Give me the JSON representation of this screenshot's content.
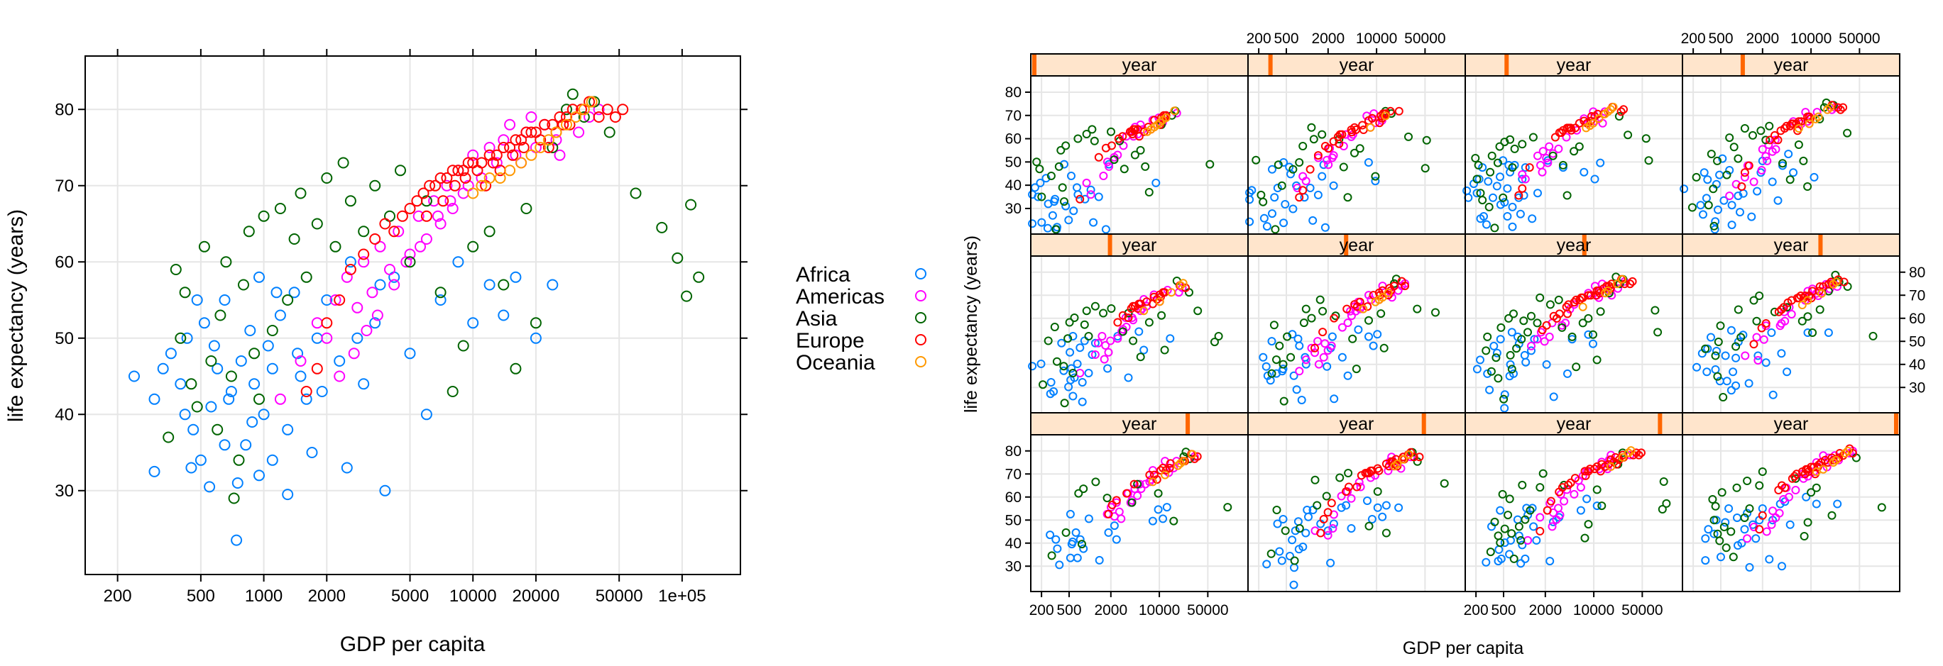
{
  "colors": {
    "Africa": "#0080ff",
    "Americas": "#ff00ff",
    "Asia": "#006400",
    "Europe": "#ff0000",
    "Oceania": "#ff9900",
    "strip_bg": "#ffe5cc",
    "strip_marker": "#ff6600"
  },
  "legend": {
    "entries": [
      "Africa",
      "Americas",
      "Asia",
      "Europe",
      "Oceania"
    ]
  },
  "chart_data": [
    {
      "type": "scatter",
      "title": "",
      "xlabel": "GDP per capita",
      "ylabel": "life expectancy (years)",
      "x_scale": "log",
      "xlim": [
        140,
        190000
      ],
      "ylim": [
        19,
        87
      ],
      "x_ticks": [
        200,
        500,
        1000,
        2000,
        5000,
        10000,
        20000,
        50000,
        100000
      ],
      "x_tick_labels": [
        "200",
        "500",
        "1000",
        "2000",
        "5000",
        "10000",
        "20000",
        "50000",
        "1e+05"
      ],
      "y_ticks": [
        30,
        40,
        50,
        60,
        70,
        80
      ],
      "y_tick_labels": [
        "30",
        "40",
        "50",
        "60",
        "70",
        "80"
      ],
      "grid": true,
      "series": [
        {
          "name": "Africa",
          "points": [
            [
              240,
              45
            ],
            [
              300,
              42
            ],
            [
              330,
              46
            ],
            [
              360,
              48
            ],
            [
              400,
              44
            ],
            [
              430,
              50
            ],
            [
              460,
              38
            ],
            [
              500,
              34
            ],
            [
              520,
              52
            ],
            [
              560,
              41
            ],
            [
              600,
              46
            ],
            [
              650,
              55
            ],
            [
              700,
              43
            ],
            [
              740,
              23.5
            ],
            [
              780,
              47
            ],
            [
              820,
              36
            ],
            [
              860,
              51
            ],
            [
              900,
              44
            ],
            [
              950,
              58
            ],
            [
              1000,
              40
            ],
            [
              1050,
              49
            ],
            [
              1100,
              46
            ],
            [
              1200,
              53
            ],
            [
              1300,
              38
            ],
            [
              1400,
              56
            ],
            [
              1500,
              45
            ],
            [
              1600,
              42
            ],
            [
              1800,
              50
            ],
            [
              2000,
              55
            ],
            [
              2300,
              47
            ],
            [
              2600,
              60
            ],
            [
              3000,
              44
            ],
            [
              3400,
              52
            ],
            [
              3800,
              30
            ],
            [
              4200,
              58
            ],
            [
              5000,
              48
            ],
            [
              6000,
              40
            ],
            [
              7000,
              55
            ],
            [
              8500,
              60
            ],
            [
              10000,
              52
            ],
            [
              12000,
              57
            ],
            [
              14000,
              53
            ],
            [
              16000,
              58
            ],
            [
              20000,
              50
            ],
            [
              24000,
              57
            ],
            [
              300,
              32.5
            ],
            [
              450,
              33
            ],
            [
              550,
              30.5
            ],
            [
              650,
              36
            ],
            [
              750,
              31
            ],
            [
              950,
              32
            ],
            [
              1100,
              34
            ],
            [
              1300,
              29.5
            ],
            [
              1700,
              35
            ],
            [
              2500,
              33
            ],
            [
              420,
              40
            ],
            [
              480,
              55
            ],
            [
              580,
              49
            ],
            [
              680,
              42
            ],
            [
              880,
              39
            ],
            [
              1150,
              56
            ],
            [
              1450,
              48
            ],
            [
              1900,
              43
            ],
            [
              2800,
              50
            ],
            [
              3600,
              57
            ]
          ]
        },
        {
          "name": "Americas",
          "points": [
            [
              1200,
              42
            ],
            [
              1500,
              47
            ],
            [
              1800,
              52
            ],
            [
              2000,
              50
            ],
            [
              2200,
              55
            ],
            [
              2500,
              58
            ],
            [
              2800,
              54
            ],
            [
              3000,
              60
            ],
            [
              3300,
              56
            ],
            [
              3600,
              62
            ],
            [
              4000,
              59
            ],
            [
              4400,
              64
            ],
            [
              5000,
              61
            ],
            [
              5500,
              66
            ],
            [
              6000,
              63
            ],
            [
              6500,
              68
            ],
            [
              7000,
              65
            ],
            [
              7500,
              70
            ],
            [
              8000,
              67
            ],
            [
              8500,
              72
            ],
            [
              9000,
              69
            ],
            [
              10000,
              74
            ],
            [
              11000,
              71
            ],
            [
              12000,
              75
            ],
            [
              13000,
              73
            ],
            [
              14000,
              76
            ],
            [
              16000,
              74
            ],
            [
              18000,
              77
            ],
            [
              20000,
              75
            ],
            [
              22000,
              78
            ],
            [
              25000,
              76
            ],
            [
              28000,
              79
            ],
            [
              32000,
              77
            ],
            [
              36000,
              79
            ],
            [
              40000,
              80
            ],
            [
              2300,
              45
            ],
            [
              2700,
              48
            ],
            [
              3100,
              51
            ],
            [
              3500,
              53
            ],
            [
              4200,
              57
            ],
            [
              4800,
              60
            ],
            [
              5600,
              62
            ],
            [
              6800,
              66
            ],
            [
              7800,
              68
            ],
            [
              9500,
              70
            ],
            [
              15000,
              78
            ],
            [
              17000,
              73
            ],
            [
              19000,
              79
            ],
            [
              26000,
              74
            ]
          ]
        },
        {
          "name": "Asia",
          "points": [
            [
              350,
              37
            ],
            [
              380,
              59
            ],
            [
              400,
              50
            ],
            [
              420,
              56
            ],
            [
              450,
              44
            ],
            [
              480,
              41
            ],
            [
              520,
              62
            ],
            [
              560,
              47
            ],
            [
              600,
              38
            ],
            [
              620,
              53
            ],
            [
              660,
              60
            ],
            [
              700,
              45
            ],
            [
              720,
              29
            ],
            [
              760,
              34
            ],
            [
              800,
              57
            ],
            [
              850,
              64
            ],
            [
              900,
              48
            ],
            [
              950,
              42
            ],
            [
              1000,
              66
            ],
            [
              1100,
              51
            ],
            [
              1200,
              67
            ],
            [
              1300,
              55
            ],
            [
              1400,
              63
            ],
            [
              1500,
              69
            ],
            [
              1600,
              58
            ],
            [
              1800,
              65
            ],
            [
              2000,
              71
            ],
            [
              2200,
              62
            ],
            [
              2400,
              73
            ],
            [
              2600,
              68
            ],
            [
              3000,
              64
            ],
            [
              3400,
              70
            ],
            [
              4000,
              66
            ],
            [
              4500,
              72
            ],
            [
              5000,
              60
            ],
            [
              6000,
              68
            ],
            [
              7000,
              56
            ],
            [
              8000,
              43
            ],
            [
              9000,
              49
            ],
            [
              10000,
              62
            ],
            [
              12000,
              64
            ],
            [
              14000,
              57
            ],
            [
              16000,
              46
            ],
            [
              18000,
              67
            ],
            [
              20000,
              52
            ],
            [
              24000,
              75
            ],
            [
              28000,
              80
            ],
            [
              30000,
              82
            ],
            [
              34000,
              79
            ],
            [
              38000,
              81
            ],
            [
              45000,
              77
            ],
            [
              60000,
              69
            ],
            [
              80000,
              64.5
            ],
            [
              95000,
              60.5
            ],
            [
              105000,
              55.5
            ],
            [
              110000,
              67.5
            ],
            [
              120000,
              58
            ]
          ]
        },
        {
          "name": "Europe",
          "points": [
            [
              1600,
              43
            ],
            [
              1800,
              46
            ],
            [
              2000,
              52
            ],
            [
              2300,
              55
            ],
            [
              2600,
              59
            ],
            [
              3000,
              61
            ],
            [
              3400,
              63
            ],
            [
              3800,
              65
            ],
            [
              4200,
              64
            ],
            [
              4600,
              66
            ],
            [
              5000,
              67
            ],
            [
              5400,
              68
            ],
            [
              5800,
              69
            ],
            [
              6200,
              70
            ],
            [
              6600,
              70
            ],
            [
              7000,
              71
            ],
            [
              7500,
              71
            ],
            [
              8000,
              72
            ],
            [
              8500,
              72
            ],
            [
              9000,
              72
            ],
            [
              9500,
              73
            ],
            [
              10000,
              73
            ],
            [
              11000,
              73
            ],
            [
              12000,
              74
            ],
            [
              13000,
              74
            ],
            [
              14000,
              75
            ],
            [
              15000,
              75
            ],
            [
              16000,
              76
            ],
            [
              17000,
              76
            ],
            [
              18000,
              77
            ],
            [
              19000,
              77
            ],
            [
              20000,
              77
            ],
            [
              22000,
              78
            ],
            [
              24000,
              78
            ],
            [
              26000,
              79
            ],
            [
              28000,
              79
            ],
            [
              30000,
              80
            ],
            [
              33000,
              80
            ],
            [
              36000,
              81
            ],
            [
              40000,
              79
            ],
            [
              44000,
              80
            ],
            [
              48000,
              79
            ],
            [
              52000,
              80
            ],
            [
              6000,
              66
            ],
            [
              7200,
              68
            ],
            [
              8200,
              70
            ],
            [
              9200,
              71
            ],
            [
              10500,
              72
            ],
            [
              11500,
              70
            ],
            [
              12500,
              73
            ],
            [
              13500,
              72
            ],
            [
              15500,
              74
            ],
            [
              17500,
              75
            ],
            [
              21000,
              76
            ],
            [
              23000,
              75
            ],
            [
              25000,
              77
            ],
            [
              27000,
              78
            ],
            [
              29000,
              78
            ]
          ]
        },
        {
          "name": "Oceania",
          "points": [
            [
              10000,
              69
            ],
            [
              11000,
              70
            ],
            [
              12000,
              71
            ],
            [
              13500,
              71
            ],
            [
              15000,
              72
            ],
            [
              17000,
              73
            ],
            [
              19000,
              74
            ],
            [
              21000,
              75
            ],
            [
              23000,
              76
            ],
            [
              25000,
              77
            ],
            [
              28000,
              78
            ],
            [
              31000,
              79
            ],
            [
              34000,
              80
            ],
            [
              37000,
              81
            ]
          ]
        }
      ]
    },
    {
      "type": "scatter",
      "title": "",
      "xlabel": "GDP per capita",
      "ylabel": "life expectancy (years)",
      "x_scale": "log",
      "xlim": [
        140,
        190000
      ],
      "ylim": [
        19,
        87
      ],
      "x_ticks": [
        200,
        500,
        2000,
        10000,
        50000
      ],
      "x_tick_labels": [
        "200",
        "500",
        "2000",
        "10000",
        "50000"
      ],
      "y_ticks": [
        30,
        40,
        50,
        60,
        70,
        80
      ],
      "y_tick_labels": [
        "30",
        "40",
        "50",
        "60",
        "70",
        "80"
      ],
      "grid": true,
      "panel_strip_label": "year",
      "panels": [
        {
          "year_fraction": 0.0
        },
        {
          "year_fraction": 0.09
        },
        {
          "year_fraction": 0.18
        },
        {
          "year_fraction": 0.27
        },
        {
          "year_fraction": 0.36
        },
        {
          "year_fraction": 0.45
        },
        {
          "year_fraction": 0.55
        },
        {
          "year_fraction": 0.64
        },
        {
          "year_fraction": 0.73
        },
        {
          "year_fraction": 0.82
        },
        {
          "year_fraction": 0.91
        },
        {
          "year_fraction": 1.0
        }
      ]
    }
  ]
}
